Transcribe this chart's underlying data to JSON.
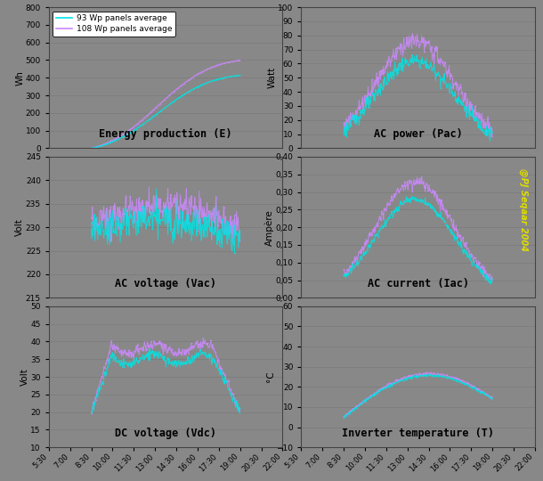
{
  "legend_labels": [
    "93 Wp panels average",
    "108 Wp panels average"
  ],
  "colors": [
    "#00e5e5",
    "#cc88ff"
  ],
  "bg_color": "#888888",
  "watermark": "@PJ Seqaar 2004",
  "watermark_color": "#dddd00",
  "plots": [
    {
      "title": "Energy production (E)",
      "ylabel": "Wh",
      "ylim": [
        0,
        800
      ],
      "yticks": [
        0,
        100,
        200,
        300,
        400,
        500,
        600,
        700,
        800
      ],
      "curve_type": "energy"
    },
    {
      "title": "AC power (Pac)",
      "ylabel": "Watt",
      "ylim": [
        0,
        100
      ],
      "yticks": [
        0,
        10,
        20,
        30,
        40,
        50,
        60,
        70,
        80,
        90,
        100
      ],
      "curve_type": "ac_power"
    },
    {
      "title": "AC voltage (Vac)",
      "ylabel": "Volt",
      "ylim": [
        215,
        245
      ],
      "yticks": [
        215,
        220,
        225,
        230,
        235,
        240,
        245
      ],
      "curve_type": "ac_voltage"
    },
    {
      "title": "AC current (Iac)",
      "ylabel": "Ampère",
      "ylim": [
        0.0,
        0.4
      ],
      "yticks": [
        0.0,
        0.05,
        0.1,
        0.15,
        0.2,
        0.25,
        0.3,
        0.35,
        0.4
      ],
      "ytick_labels": [
        "0,00",
        "0,05",
        "0,10",
        "0,15",
        "0,20",
        "0,25",
        "0,30",
        "0,35",
        "0,40"
      ],
      "curve_type": "ac_current"
    },
    {
      "title": "DC voltage (Vdc)",
      "ylabel": "Volt",
      "ylim": [
        10,
        50
      ],
      "yticks": [
        10,
        15,
        20,
        25,
        30,
        35,
        40,
        45,
        50
      ],
      "curve_type": "dc_voltage"
    },
    {
      "title": "Inverter temperature (T)",
      "ylabel": "°C",
      "ylim": [
        -10,
        60
      ],
      "yticks": [
        -10,
        0,
        10,
        20,
        30,
        40,
        50,
        60
      ],
      "curve_type": "temperature"
    }
  ],
  "xtick_labels": [
    "5:30",
    "7:00",
    "8:30",
    "10:00",
    "11:30",
    "13:00",
    "14:30",
    "16:00",
    "17:30",
    "19:00",
    "20:30",
    "22:00"
  ],
  "xtick_positions": [
    0,
    1,
    2,
    3,
    4,
    5,
    6,
    7,
    8,
    9,
    10,
    11
  ],
  "x_start": 2.0,
  "x_end": 9.0
}
